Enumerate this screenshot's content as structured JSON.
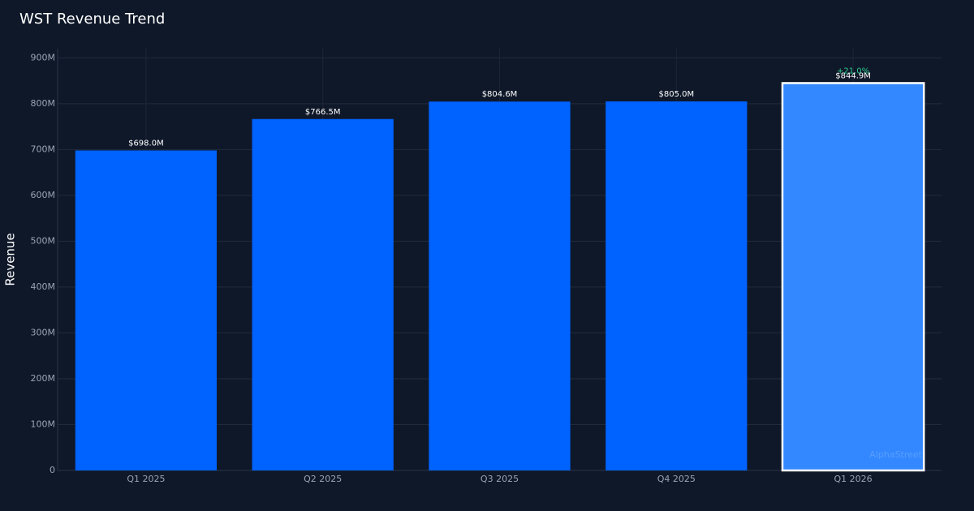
{
  "chart_data": {
    "type": "bar",
    "title": "WST Revenue Trend",
    "y_label": "Revenue",
    "categories": [
      "Q1 2025",
      "Q2 2025",
      "Q3 2025",
      "Q4 2025",
      "Q1 2026"
    ],
    "values": [
      698.0,
      766.5,
      804.6,
      805.0,
      844.9
    ],
    "value_labels": [
      "$698.0M",
      "$766.5M",
      "$804.6M",
      "$805.0M",
      "$844.9M"
    ],
    "colors": [
      "#0062ff",
      "#0062ff",
      "#0062ff",
      "#0062ff",
      "#3388ff"
    ],
    "ylim": [
      0,
      920
    ],
    "yticks": [
      0,
      {
        "value": 100,
        "label": "100M"
      },
      {
        "value": 200,
        "label": "200M"
      },
      {
        "value": 300,
        "label": "300M"
      },
      {
        "value": 400,
        "label": "400M"
      },
      {
        "value": 500,
        "label": "500M"
      },
      {
        "value": 600,
        "label": "600M"
      },
      {
        "value": 700,
        "label": "700M"
      },
      {
        "value": 800,
        "label": "800M"
      },
      {
        "value": 900,
        "label": "900M"
      }
    ],
    "grid": true,
    "annotation": "+21.0%",
    "watermark": "AlphaStreet"
  }
}
